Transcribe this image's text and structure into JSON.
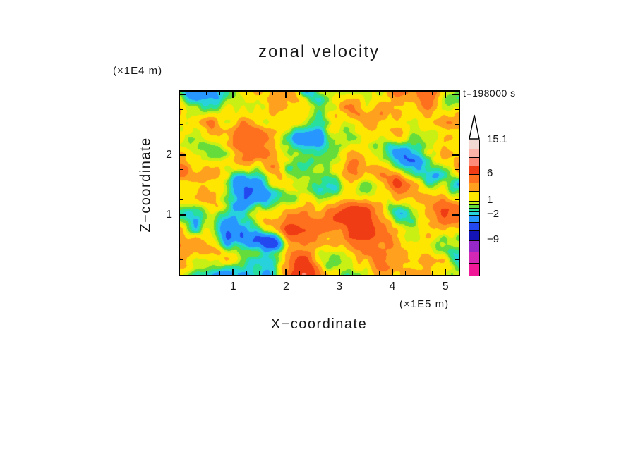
{
  "chart_data": {
    "type": "heatmap",
    "title": "zonal velocity",
    "time_label": "t=198000 s",
    "xlabel": "X−coordinate",
    "x_unit": "(×1E5 m)",
    "ylabel": "Z−coordinate",
    "y_unit": "(×1E4 m)",
    "x_ticks": [
      1,
      2,
      3,
      4,
      5
    ],
    "y_ticks": [
      1,
      2
    ],
    "xlim": [
      0,
      5.25
    ],
    "ylim": [
      0,
      3.05
    ],
    "field_description": "Turbulent zonal-velocity cross-section; filled contours quantized to the discrete color levels below (values in m/s, range about -13 to 15.1).",
    "levels": [
      -13,
      -11,
      -9,
      -6,
      -3.5,
      -2,
      -1.25,
      -0.5,
      0.25,
      1,
      2.5,
      4,
      6,
      9,
      12,
      15.1
    ],
    "colors": [
      "#F01896",
      "#D428B4",
      "#9628C8",
      "#1414B4",
      "#2348F0",
      "#2896FF",
      "#28D2DC",
      "#28E09B",
      "#64DC3C",
      "#C8F014",
      "#FFE600",
      "#FFA01E",
      "#FF701E",
      "#F03C14",
      "#FF8C78",
      "#FFB4AA",
      "#F2D8D2"
    ],
    "colorbar_labels": [
      "15.1",
      "6",
      "1",
      "−2",
      "−9"
    ]
  },
  "colorbar": {
    "segments": [
      {
        "color": "#F2D8D2",
        "h": 12
      },
      {
        "color": "#FFB4AA",
        "h": 12
      },
      {
        "color": "#FF8C78",
        "h": 12
      },
      {
        "color": "#F03C14",
        "h": 12
      },
      {
        "color": "#FF701E",
        "h": 12
      },
      {
        "color": "#FFA01E",
        "h": 12
      },
      {
        "color": "#FFE600",
        "h": 14
      },
      {
        "color": "#C8F014",
        "h": 5
      },
      {
        "color": "#64DC3C",
        "h": 5
      },
      {
        "color": "#28E09B",
        "h": 5
      },
      {
        "color": "#28D2DC",
        "h": 5
      },
      {
        "color": "#2896FF",
        "h": 10
      },
      {
        "color": "#2348F0",
        "h": 12
      },
      {
        "color": "#1414B4",
        "h": 14
      },
      {
        "color": "#9628C8",
        "h": 16
      },
      {
        "color": "#D428B4",
        "h": 16
      },
      {
        "color": "#F01896",
        "h": 18
      }
    ],
    "labels": [
      {
        "text": "15.1",
        "boundary": 0
      },
      {
        "text": "6",
        "boundary": 4
      },
      {
        "text": "1",
        "boundary": 7
      },
      {
        "text": "−2",
        "boundary": 11
      },
      {
        "text": "−9",
        "boundary": 14
      }
    ]
  }
}
